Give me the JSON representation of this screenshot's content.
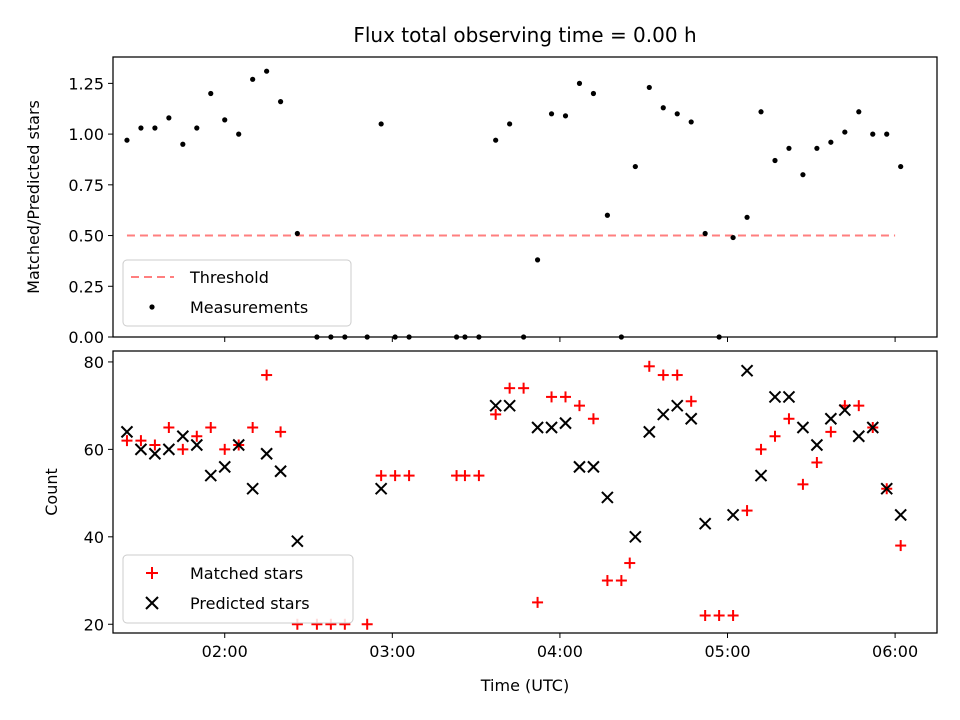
{
  "chart_data": [
    {
      "type": "scatter",
      "title": "Flux total observing time = 0.00 h",
      "xlabel": "",
      "ylabel": "Matched/Predicted stars",
      "ylim": [
        0,
        1.38
      ],
      "yticks": [
        "0.00",
        "0.25",
        "0.50",
        "0.75",
        "1.00",
        "1.25"
      ],
      "xlim": [
        "01:20",
        "06:15"
      ],
      "grid": false,
      "legend_position": "lower-left",
      "threshold": {
        "name": "Threshold",
        "value": 0.5,
        "x_start": "01:25",
        "x_end": "06:00",
        "color": "#ff7f7f"
      },
      "series": [
        {
          "name": "Measurements",
          "color": "#000000",
          "points": [
            [
              "01:25",
              0.97
            ],
            [
              "01:30",
              1.03
            ],
            [
              "01:35",
              1.03
            ],
            [
              "01:40",
              1.08
            ],
            [
              "01:45",
              0.95
            ],
            [
              "01:50",
              1.03
            ],
            [
              "01:55",
              1.2
            ],
            [
              "02:00",
              1.07
            ],
            [
              "02:05",
              1.0
            ],
            [
              "02:10",
              1.27
            ],
            [
              "02:15",
              1.31
            ],
            [
              "02:20",
              1.16
            ],
            [
              "02:26",
              0.51
            ],
            [
              "02:33",
              0.0
            ],
            [
              "02:38",
              0.0
            ],
            [
              "02:43",
              0.0
            ],
            [
              "02:51",
              0.0
            ],
            [
              "02:56",
              1.05
            ],
            [
              "03:01",
              0.0
            ],
            [
              "03:06",
              0.0
            ],
            [
              "03:23",
              0.0
            ],
            [
              "03:26",
              0.0
            ],
            [
              "03:31",
              0.0
            ],
            [
              "03:37",
              0.97
            ],
            [
              "03:42",
              1.05
            ],
            [
              "03:47",
              0.0
            ],
            [
              "03:52",
              0.38
            ],
            [
              "03:57",
              1.1
            ],
            [
              "04:02",
              1.09
            ],
            [
              "04:07",
              1.25
            ],
            [
              "04:12",
              1.2
            ],
            [
              "04:17",
              0.6
            ],
            [
              "04:22",
              0.0
            ],
            [
              "04:27",
              0.84
            ],
            [
              "04:32",
              1.23
            ],
            [
              "04:37",
              1.13
            ],
            [
              "04:42",
              1.1
            ],
            [
              "04:47",
              1.06
            ],
            [
              "04:52",
              0.51
            ],
            [
              "04:57",
              0.0
            ],
            [
              "05:02",
              0.49
            ],
            [
              "05:07",
              0.59
            ],
            [
              "05:12",
              1.11
            ],
            [
              "05:17",
              0.87
            ],
            [
              "05:22",
              0.93
            ],
            [
              "05:27",
              0.8
            ],
            [
              "05:32",
              0.93
            ],
            [
              "05:37",
              0.96
            ],
            [
              "05:42",
              1.01
            ],
            [
              "05:47",
              1.11
            ],
            [
              "05:52",
              1.0
            ],
            [
              "05:57",
              1.0
            ],
            [
              "06:02",
              0.84
            ]
          ]
        }
      ]
    },
    {
      "type": "scatter",
      "title": "",
      "xlabel": "Time (UTC)",
      "ylabel": "Count",
      "ylim": [
        18,
        82.5
      ],
      "yticks": [
        "20",
        "40",
        "60",
        "80"
      ],
      "xticks": [
        "02:00",
        "03:00",
        "04:00",
        "05:00",
        "06:00"
      ],
      "xlim": [
        "01:20",
        "06:15"
      ],
      "grid": false,
      "legend_position": "lower-left",
      "series": [
        {
          "name": "Matched stars",
          "marker": "plus",
          "color": "#ff0000",
          "points": [
            [
              "01:25",
              62
            ],
            [
              "01:30",
              62
            ],
            [
              "01:35",
              61
            ],
            [
              "01:40",
              65
            ],
            [
              "01:45",
              60
            ],
            [
              "01:50",
              63
            ],
            [
              "01:55",
              65
            ],
            [
              "02:00",
              60
            ],
            [
              "02:05",
              61
            ],
            [
              "02:10",
              65
            ],
            [
              "02:15",
              77
            ],
            [
              "02:20",
              64
            ],
            [
              "02:26",
              20
            ],
            [
              "02:33",
              20
            ],
            [
              "02:38",
              20
            ],
            [
              "02:43",
              20
            ],
            [
              "02:51",
              20
            ],
            [
              "02:56",
              54
            ],
            [
              "03:01",
              54
            ],
            [
              "03:06",
              54
            ],
            [
              "03:23",
              54
            ],
            [
              "03:26",
              54
            ],
            [
              "03:31",
              54
            ],
            [
              "03:37",
              68
            ],
            [
              "03:42",
              74
            ],
            [
              "03:47",
              74
            ],
            [
              "03:52",
              25
            ],
            [
              "03:57",
              72
            ],
            [
              "04:02",
              72
            ],
            [
              "04:07",
              70
            ],
            [
              "04:12",
              67
            ],
            [
              "04:17",
              30
            ],
            [
              "04:22",
              30
            ],
            [
              "04:25",
              34
            ],
            [
              "04:32",
              79
            ],
            [
              "04:37",
              77
            ],
            [
              "04:42",
              77
            ],
            [
              "04:47",
              71
            ],
            [
              "04:52",
              22
            ],
            [
              "04:57",
              22
            ],
            [
              "05:02",
              22
            ],
            [
              "05:07",
              46
            ],
            [
              "05:12",
              60
            ],
            [
              "05:17",
              63
            ],
            [
              "05:22",
              67
            ],
            [
              "05:27",
              52
            ],
            [
              "05:32",
              57
            ],
            [
              "05:37",
              64
            ],
            [
              "05:42",
              70
            ],
            [
              "05:47",
              70
            ],
            [
              "05:52",
              65
            ],
            [
              "05:57",
              51
            ],
            [
              "06:02",
              38
            ]
          ]
        },
        {
          "name": "Predicted stars",
          "marker": "x",
          "color": "#000000",
          "points": [
            [
              "01:25",
              64
            ],
            [
              "01:30",
              60
            ],
            [
              "01:35",
              59
            ],
            [
              "01:40",
              60
            ],
            [
              "01:45",
              63
            ],
            [
              "01:50",
              61
            ],
            [
              "01:55",
              54
            ],
            [
              "02:00",
              56
            ],
            [
              "02:05",
              61
            ],
            [
              "02:10",
              51
            ],
            [
              "02:15",
              59
            ],
            [
              "02:20",
              55
            ],
            [
              "02:26",
              39
            ],
            [
              "02:56",
              51
            ],
            [
              "03:37",
              70
            ],
            [
              "03:42",
              70
            ],
            [
              "03:52",
              65
            ],
            [
              "03:57",
              65
            ],
            [
              "04:02",
              66
            ],
            [
              "04:07",
              56
            ],
            [
              "04:12",
              56
            ],
            [
              "04:17",
              49
            ],
            [
              "04:27",
              40
            ],
            [
              "04:32",
              64
            ],
            [
              "04:37",
              68
            ],
            [
              "04:42",
              70
            ],
            [
              "04:47",
              67
            ],
            [
              "04:52",
              43
            ],
            [
              "05:02",
              45
            ],
            [
              "05:07",
              78
            ],
            [
              "05:12",
              54
            ],
            [
              "05:17",
              72
            ],
            [
              "05:22",
              72
            ],
            [
              "05:27",
              65
            ],
            [
              "05:32",
              61
            ],
            [
              "05:37",
              67
            ],
            [
              "05:42",
              69
            ],
            [
              "05:47",
              63
            ],
            [
              "05:52",
              65
            ],
            [
              "05:57",
              51
            ],
            [
              "06:02",
              45
            ]
          ]
        }
      ]
    }
  ]
}
